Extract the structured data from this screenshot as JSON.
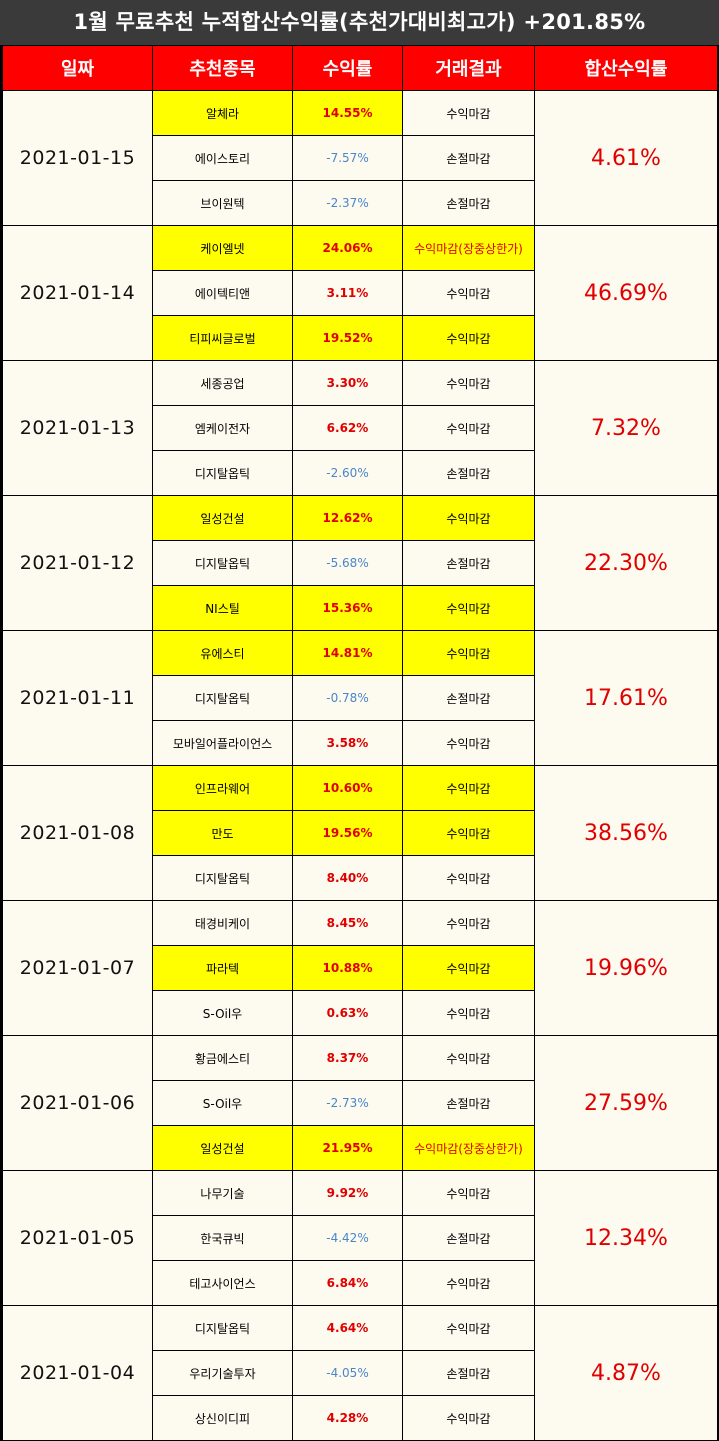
{
  "title": "1월 무료추천 누적합산수익률(추천가대비최고가) +201.85%",
  "headers": [
    "일짜",
    "추천종목",
    "수익률",
    "거래결과",
    "합산수익률"
  ],
  "groups": [
    {
      "date": "2021-01-15",
      "total": "4.61%",
      "items": [
        {
          "name": "알체라",
          "rate": "14.55%",
          "result": "수익마감",
          "hl_name": true,
          "hl_rate": true,
          "hl_result": false
        },
        {
          "name": "에이스토리",
          "rate": "-7.57%",
          "result": "손절마감",
          "hl_name": false,
          "hl_rate": false,
          "hl_result": false
        },
        {
          "name": "브이원텍",
          "rate": "-2.37%",
          "result": "손절마감",
          "hl_name": false,
          "hl_rate": false,
          "hl_result": false
        }
      ]
    },
    {
      "date": "2021-01-14",
      "total": "46.69%",
      "items": [
        {
          "name": "케이엘넷",
          "rate": "24.06%",
          "result": "수익마감(장중상한가)",
          "hl_name": true,
          "hl_rate": true,
          "hl_result": true
        },
        {
          "name": "에이텍티앤",
          "rate": "3.11%",
          "result": "수익마감",
          "hl_name": false,
          "hl_rate": false,
          "hl_result": false
        },
        {
          "name": "티피씨글로벌",
          "rate": "19.52%",
          "result": "수익마감",
          "hl_name": true,
          "hl_rate": true,
          "hl_result": true
        }
      ]
    },
    {
      "date": "2021-01-13",
      "total": "7.32%",
      "items": [
        {
          "name": "세종공업",
          "rate": "3.30%",
          "result": "수익마감",
          "hl_name": false,
          "hl_rate": false,
          "hl_result": false
        },
        {
          "name": "엠케이전자",
          "rate": "6.62%",
          "result": "수익마감",
          "hl_name": false,
          "hl_rate": false,
          "hl_result": false
        },
        {
          "name": "디지탈옵틱",
          "rate": "-2.60%",
          "result": "손절마감",
          "hl_name": false,
          "hl_rate": false,
          "hl_result": false
        }
      ]
    },
    {
      "date": "2021-01-12",
      "total": "22.30%",
      "items": [
        {
          "name": "일성건설",
          "rate": "12.62%",
          "result": "수익마감",
          "hl_name": true,
          "hl_rate": true,
          "hl_result": true
        },
        {
          "name": "디지탈옵틱",
          "rate": "-5.68%",
          "result": "손절마감",
          "hl_name": false,
          "hl_rate": false,
          "hl_result": false
        },
        {
          "name": "NI스틸",
          "rate": "15.36%",
          "result": "수익마감",
          "hl_name": true,
          "hl_rate": true,
          "hl_result": true
        }
      ]
    },
    {
      "date": "2021-01-11",
      "total": "17.61%",
      "items": [
        {
          "name": "유에스티",
          "rate": "14.81%",
          "result": "수익마감",
          "hl_name": true,
          "hl_rate": true,
          "hl_result": true
        },
        {
          "name": "디지탈옵틱",
          "rate": "-0.78%",
          "result": "손절마감",
          "hl_name": false,
          "hl_rate": false,
          "hl_result": false
        },
        {
          "name": "모바일어플라이언스",
          "rate": "3.58%",
          "result": "수익마감",
          "hl_name": false,
          "hl_rate": false,
          "hl_result": false
        }
      ]
    },
    {
      "date": "2021-01-08",
      "total": "38.56%",
      "items": [
        {
          "name": "인프라웨어",
          "rate": "10.60%",
          "result": "수익마감",
          "hl_name": true,
          "hl_rate": true,
          "hl_result": true
        },
        {
          "name": "만도",
          "rate": "19.56%",
          "result": "수익마감",
          "hl_name": true,
          "hl_rate": true,
          "hl_result": true
        },
        {
          "name": "디지탈옵틱",
          "rate": "8.40%",
          "result": "수익마감",
          "hl_name": false,
          "hl_rate": false,
          "hl_result": false
        }
      ]
    },
    {
      "date": "2021-01-07",
      "total": "19.96%",
      "items": [
        {
          "name": "태경비케이",
          "rate": "8.45%",
          "result": "수익마감",
          "hl_name": false,
          "hl_rate": false,
          "hl_result": false
        },
        {
          "name": "파라텍",
          "rate": "10.88%",
          "result": "수익마감",
          "hl_name": true,
          "hl_rate": true,
          "hl_result": true
        },
        {
          "name": "S-Oil우",
          "rate": "0.63%",
          "result": "수익마감",
          "hl_name": false,
          "hl_rate": false,
          "hl_result": false
        }
      ]
    },
    {
      "date": "2021-01-06",
      "total": "27.59%",
      "items": [
        {
          "name": "황금에스티",
          "rate": "8.37%",
          "result": "수익마감",
          "hl_name": false,
          "hl_rate": false,
          "hl_result": false
        },
        {
          "name": "S-Oil우",
          "rate": "-2.73%",
          "result": "손절마감",
          "hl_name": false,
          "hl_rate": false,
          "hl_result": false
        },
        {
          "name": "일성건설",
          "rate": "21.95%",
          "result": "수익마감(장중상한가)",
          "hl_name": true,
          "hl_rate": true,
          "hl_result": true
        }
      ]
    },
    {
      "date": "2021-01-05",
      "total": "12.34%",
      "items": [
        {
          "name": "나무기술",
          "rate": "9.92%",
          "result": "수익마감",
          "hl_name": false,
          "hl_rate": false,
          "hl_result": false
        },
        {
          "name": "한국큐빅",
          "rate": "-4.42%",
          "result": "손절마감",
          "hl_name": false,
          "hl_rate": false,
          "hl_result": false
        },
        {
          "name": "테고사이언스",
          "rate": "6.84%",
          "result": "수익마감",
          "hl_name": false,
          "hl_rate": false,
          "hl_result": false
        }
      ]
    },
    {
      "date": "2021-01-04",
      "total": "4.87%",
      "items": [
        {
          "name": "디지탈옵틱",
          "rate": "4.64%",
          "result": "수익마감",
          "hl_name": false,
          "hl_rate": false,
          "hl_result": false
        },
        {
          "name": "우리기술투자",
          "rate": "-4.05%",
          "result": "손절마감",
          "hl_name": false,
          "hl_rate": false,
          "hl_result": false
        },
        {
          "name": "상신이디피",
          "rate": "4.28%",
          "result": "수익마감",
          "hl_name": false,
          "hl_rate": false,
          "hl_result": false
        }
      ]
    }
  ]
}
